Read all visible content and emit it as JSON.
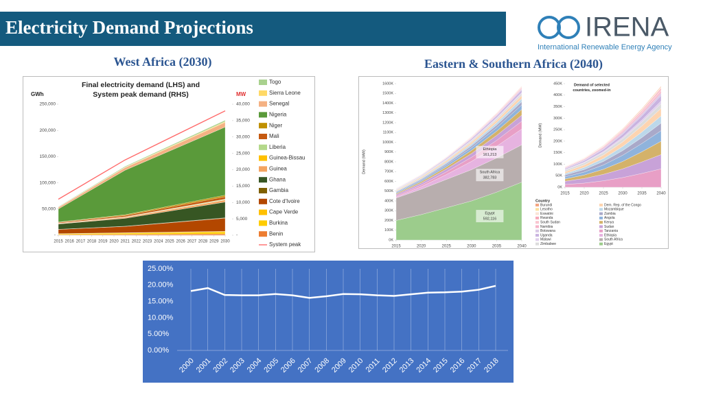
{
  "header": {
    "title": "Electricity Demand Projections"
  },
  "logo": {
    "name": "IRENA",
    "subtitle": "International Renewable Energy Agency"
  },
  "panels": [
    "West Africa (2030)",
    "Eastern & Southern Africa (2040)"
  ],
  "chart_data": [
    {
      "type": "area",
      "title": [
        "Final electricity demand (LHS) and",
        "System peak demand (RHS)"
      ],
      "y_label": "GWh",
      "y2_label": "MW",
      "x": [
        2015,
        2021,
        2030
      ],
      "xlim": [
        2015,
        2030
      ],
      "xticks": [
        2015,
        2016,
        2017,
        2018,
        2019,
        2020,
        2021,
        2022,
        2023,
        2024,
        2025,
        2026,
        2027,
        2028,
        2029,
        2030
      ],
      "ylim": [
        0,
        250000
      ],
      "yticks": [
        {
          "value": 0,
          "label": "-"
        },
        {
          "value": 50000,
          "label": "50,000"
        },
        {
          "value": 100000,
          "label": "100,000"
        },
        {
          "value": 150000,
          "label": "150,000"
        },
        {
          "value": 200000,
          "label": "200,000"
        },
        {
          "value": 250000,
          "label": "250,000"
        }
      ],
      "y2lim": [
        0,
        40000
      ],
      "y2ticks": [
        {
          "value": 0,
          "label": "-"
        },
        {
          "value": 5000,
          "label": "5,000"
        },
        {
          "value": 10000,
          "label": "10,000"
        },
        {
          "value": 15000,
          "label": "15,000"
        },
        {
          "value": 20000,
          "label": "20,000"
        },
        {
          "value": 25000,
          "label": "25,000"
        },
        {
          "value": 30000,
          "label": "30,000"
        },
        {
          "value": 35000,
          "label": "35,000"
        },
        {
          "value": 40000,
          "label": "40,000"
        }
      ],
      "legend": "right",
      "series": [
        {
          "name": "Togo",
          "color": "#a9d18e",
          "values": [
            1000,
            1500,
            2500
          ]
        },
        {
          "name": "Sierra Leone",
          "color": "#ffd966",
          "values": [
            400,
            800,
            1500
          ]
        },
        {
          "name": "Senegal",
          "color": "#f4b183",
          "values": [
            3000,
            5000,
            9000
          ]
        },
        {
          "name": "Nigeria",
          "color": "#5a9a3a",
          "values": [
            25000,
            85000,
            130000
          ]
        },
        {
          "name": "Niger",
          "color": "#bf9000",
          "values": [
            800,
            1500,
            3000
          ]
        },
        {
          "name": "Mali",
          "color": "#c55a11",
          "values": [
            1500,
            2500,
            4500
          ]
        },
        {
          "name": "Liberia",
          "color": "#b4d88a",
          "values": [
            300,
            600,
            1200
          ]
        },
        {
          "name": "Guinea-Bissau",
          "color": "#ffc000",
          "values": [
            200,
            300,
            500
          ]
        },
        {
          "name": "Guinea",
          "color": "#f4a460",
          "values": [
            1000,
            2000,
            4000
          ]
        },
        {
          "name": "Ghana",
          "color": "#375623",
          "values": [
            10000,
            15000,
            30000
          ]
        },
        {
          "name": "Gambia",
          "color": "#7f6000",
          "values": [
            300,
            500,
            800
          ]
        },
        {
          "name": "Cote d'Ivoire",
          "color": "#b34700",
          "values": [
            8000,
            12000,
            25000
          ]
        },
        {
          "name": "Cape Verde",
          "color": "#ffc000",
          "values": [
            500,
            700,
            1000
          ]
        },
        {
          "name": "Burkina",
          "color": "#ffcc00",
          "values": [
            1500,
            2500,
            4000
          ]
        },
        {
          "name": "Benin",
          "color": "#ed7d31",
          "values": [
            1000,
            1500,
            2500
          ]
        },
        {
          "name": "System peak",
          "color": "#ff6b6b",
          "axis": "y2",
          "values": [
            11000,
            23000,
            38000
          ]
        }
      ]
    },
    {
      "type": "area",
      "y_label": "Demand (MW)",
      "legend_title": "Country",
      "x": [
        2015,
        2020,
        2025,
        2030,
        2035,
        2040
      ],
      "xlim": [
        2015,
        2040
      ],
      "xticks": [
        2015,
        2020,
        2025,
        2030,
        2035,
        2040
      ],
      "ylim": [
        0,
        1600000
      ],
      "yticks": [
        {
          "value": 0,
          "label": "0K"
        },
        {
          "value": 100000,
          "label": "100K"
        },
        {
          "value": 200000,
          "label": "200K"
        },
        {
          "value": 300000,
          "label": "300K"
        },
        {
          "value": 400000,
          "label": "400K"
        },
        {
          "value": 500000,
          "label": "500K"
        },
        {
          "value": 600000,
          "label": "600K"
        },
        {
          "value": 700000,
          "label": "700K"
        },
        {
          "value": 800000,
          "label": "800K"
        },
        {
          "value": 900000,
          "label": "900K"
        },
        {
          "value": 1000000,
          "label": "1000K"
        },
        {
          "value": 1100000,
          "label": "1100K"
        },
        {
          "value": 1200000,
          "label": "1200K"
        },
        {
          "value": 1300000,
          "label": "1300K"
        },
        {
          "value": 1400000,
          "label": "1400K"
        },
        {
          "value": 1500000,
          "label": "1500K"
        },
        {
          "value": 1600000,
          "label": "1600K"
        }
      ],
      "series": [
        {
          "name": "Burundi",
          "color": "#f4a582",
          "values": [
            400,
            700,
            1100,
            1600,
            2300,
            3000
          ]
        },
        {
          "name": "Lesotho",
          "color": "#fde0a0",
          "values": [
            800,
            1000,
            1300,
            1600,
            2000,
            2400
          ]
        },
        {
          "name": "Eswatini",
          "color": "#fbe3d6",
          "values": [
            1200,
            1500,
            1800,
            2200,
            2600,
            3000
          ]
        },
        {
          "name": "Rwanda",
          "color": "#f7a8b8",
          "values": [
            700,
            1200,
            2000,
            3000,
            4500,
            6000
          ]
        },
        {
          "name": "South Sudan",
          "color": "#f9c6d0",
          "values": [
            500,
            1000,
            2000,
            3500,
            5000,
            7000
          ]
        },
        {
          "name": "Namibia",
          "color": "#f6b3c8",
          "values": [
            3000,
            3500,
            4500,
            5500,
            7000,
            8500
          ]
        },
        {
          "name": "Botswana",
          "color": "#d9c8e6",
          "values": [
            3000,
            4000,
            5000,
            6500,
            8000,
            10000
          ]
        },
        {
          "name": "Uganda",
          "color": "#c9b3e0",
          "values": [
            4000,
            6000,
            9000,
            13000,
            18000,
            24000
          ]
        },
        {
          "name": "Malawi",
          "color": "#e0d0ec",
          "values": [
            2000,
            3000,
            4500,
            6500,
            9000,
            12000
          ]
        },
        {
          "name": "Zimbabwe",
          "color": "#dcdcdc",
          "values": [
            7000,
            9000,
            11000,
            14000,
            17000,
            20000
          ]
        },
        {
          "name": "Dem. Rep. of the Congo",
          "color": "#fdd4b0",
          "values": [
            8000,
            11000,
            15000,
            20000,
            26000,
            33000
          ]
        },
        {
          "name": "Mozambique",
          "color": "#bcd8ea",
          "values": [
            6000,
            9000,
            13000,
            18000,
            24000,
            31000
          ]
        },
        {
          "name": "Zambia",
          "color": "#a9a9c9",
          "values": [
            8000,
            11000,
            15000,
            20000,
            26000,
            33000
          ]
        },
        {
          "name": "Angola",
          "color": "#8fb3dc",
          "values": [
            9000,
            13000,
            19000,
            27000,
            36000,
            46000
          ]
        },
        {
          "name": "Kenya",
          "color": "#d4b26a",
          "values": [
            10000,
            15000,
            22000,
            32000,
            44000,
            58000
          ]
        },
        {
          "name": "Sudan",
          "color": "#c8a2d8",
          "values": [
            14000,
            20000,
            28000,
            38000,
            50000,
            62000
          ]
        },
        {
          "name": "Tanzania",
          "color": "#e89fc6",
          "values": [
            12000,
            18000,
            28000,
            42000,
            60000,
            80000
          ]
        },
        {
          "name": "Ethiopia",
          "color": "#e6b3e0",
          "values": [
            10000,
            25000,
            50000,
            85000,
            120000,
            161213
          ],
          "value_labels": [
            null,
            null,
            null,
            null,
            null,
            "161,213"
          ]
        },
        {
          "name": "South Africa",
          "color": "#b8aeae",
          "values": [
            230000,
            260000,
            290000,
            320000,
            350000,
            382783
          ],
          "value_labels": [
            null,
            null,
            null,
            null,
            null,
            "382,783"
          ]
        },
        {
          "name": "Egypt",
          "color": "#9ccc8c",
          "values": [
            200000,
            260000,
            330000,
            400000,
            490000,
            592116
          ],
          "value_labels": [
            null,
            null,
            null,
            null,
            null,
            "592,116"
          ]
        }
      ]
    },
    {
      "type": "area",
      "title": [
        "Demand of selected",
        "countries, zoomed-in"
      ],
      "y_label": "Demand (MW)",
      "x": [
        2015,
        2020,
        2025,
        2030,
        2035,
        2040
      ],
      "xlim": [
        2015,
        2040
      ],
      "xticks": [
        2015,
        2020,
        2025,
        2030,
        2035,
        2040
      ],
      "ylim": [
        0,
        450000
      ],
      "yticks": [
        {
          "value": 0,
          "label": "0K"
        },
        {
          "value": 50000,
          "label": "50K"
        },
        {
          "value": 100000,
          "label": "100K"
        },
        {
          "value": 150000,
          "label": "150K"
        },
        {
          "value": 200000,
          "label": "200K"
        },
        {
          "value": 250000,
          "label": "250K"
        },
        {
          "value": 300000,
          "label": "300K"
        },
        {
          "value": 350000,
          "label": "350K"
        },
        {
          "value": 400000,
          "label": "400K"
        },
        {
          "value": 450000,
          "label": "450K"
        }
      ],
      "series": [
        {
          "color": "#f4a582",
          "values": [
            400,
            700,
            1100,
            1600,
            2300,
            3000
          ]
        },
        {
          "color": "#fde0a0",
          "values": [
            800,
            1000,
            1300,
            1600,
            2000,
            2400
          ]
        },
        {
          "color": "#fbe3d6",
          "values": [
            1200,
            1500,
            1800,
            2200,
            2600,
            3000
          ]
        },
        {
          "color": "#f7a8b8",
          "values": [
            700,
            1200,
            2000,
            3000,
            4500,
            6000
          ]
        },
        {
          "color": "#f9c6d0",
          "values": [
            500,
            1000,
            2000,
            3500,
            5000,
            7000
          ]
        },
        {
          "color": "#f6b3c8",
          "values": [
            3000,
            3500,
            4500,
            5500,
            7000,
            8500
          ]
        },
        {
          "color": "#d9c8e6",
          "values": [
            3000,
            4000,
            5000,
            6500,
            8000,
            10000
          ]
        },
        {
          "color": "#c9b3e0",
          "values": [
            4000,
            6000,
            9000,
            13000,
            18000,
            24000
          ]
        },
        {
          "color": "#e0d0ec",
          "values": [
            2000,
            3000,
            4500,
            6500,
            9000,
            12000
          ]
        },
        {
          "color": "#dcdcdc",
          "values": [
            7000,
            9000,
            11000,
            14000,
            17000,
            20000
          ]
        },
        {
          "color": "#fdd4b0",
          "values": [
            8000,
            11000,
            15000,
            20000,
            26000,
            33000
          ]
        },
        {
          "color": "#bcd8ea",
          "values": [
            6000,
            9000,
            13000,
            18000,
            24000,
            31000
          ]
        },
        {
          "color": "#a9a9c9",
          "values": [
            8000,
            11000,
            15000,
            20000,
            26000,
            33000
          ]
        },
        {
          "color": "#8fb3dc",
          "values": [
            9000,
            13000,
            19000,
            27000,
            36000,
            46000
          ]
        },
        {
          "color": "#d4b26a",
          "values": [
            10000,
            15000,
            22000,
            32000,
            44000,
            58000
          ]
        },
        {
          "color": "#c8a2d8",
          "values": [
            14000,
            20000,
            28000,
            38000,
            50000,
            62000
          ]
        },
        {
          "color": "#e89fc6",
          "values": [
            12000,
            18000,
            28000,
            42000,
            60000,
            80000
          ]
        }
      ]
    },
    {
      "type": "line",
      "categories": [
        "2000",
        "2001",
        "2002",
        "2003",
        "2004",
        "2005",
        "2006",
        "2007",
        "2008",
        "2009",
        "2010",
        "2011",
        "2012",
        "2013",
        "2014",
        "2015",
        "2016",
        "2017",
        "2018"
      ],
      "values": [
        18.2,
        19.1,
        17.0,
        16.9,
        16.9,
        17.3,
        16.9,
        16.1,
        16.6,
        17.3,
        17.2,
        16.9,
        16.7,
        17.2,
        17.7,
        17.8,
        18.0,
        18.6,
        19.8
      ],
      "color": "#ffffff",
      "background": "#4472c4",
      "ylim": [
        0,
        25
      ],
      "yticks": [
        {
          "value": 0,
          "label": "0.00%"
        },
        {
          "value": 5,
          "label": "5.00%"
        },
        {
          "value": 10,
          "label": "10.00%"
        },
        {
          "value": 15,
          "label": "15.00%"
        },
        {
          "value": 20,
          "label": "20.00%"
        },
        {
          "value": 25,
          "label": "25.00%"
        }
      ]
    }
  ]
}
